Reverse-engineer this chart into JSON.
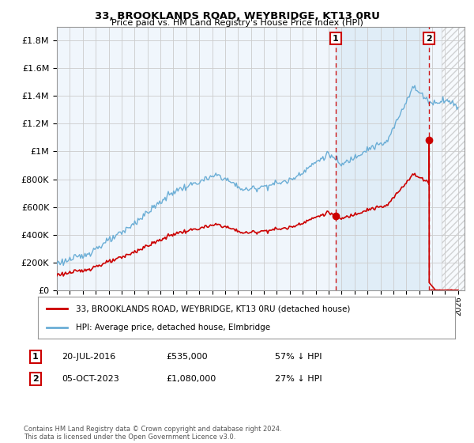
{
  "title": "33, BROOKLANDS ROAD, WEYBRIDGE, KT13 0RU",
  "subtitle": "Price paid vs. HM Land Registry's House Price Index (HPI)",
  "ylabel_ticks": [
    "£0",
    "£200K",
    "£400K",
    "£600K",
    "£800K",
    "£1M",
    "£1.2M",
    "£1.4M",
    "£1.6M",
    "£1.8M"
  ],
  "ytick_values": [
    0,
    200000,
    400000,
    600000,
    800000,
    1000000,
    1200000,
    1400000,
    1600000,
    1800000
  ],
  "ylim": [
    0,
    1900000
  ],
  "xlim_start": 1995.0,
  "xlim_end": 2026.5,
  "transaction1_date": 2016.55,
  "transaction1_price": 535000,
  "transaction1_label": "1",
  "transaction2_date": 2023.76,
  "transaction2_price": 1080000,
  "transaction2_label": "2",
  "hpi_color": "#6baed6",
  "hpi_fill_color": "#d6e8f5",
  "property_color": "#cc0000",
  "dashed_line_color": "#cc0000",
  "background_color": "#ffffff",
  "plot_bg_color": "#f0f6fc",
  "grid_color": "#cccccc",
  "legend_label_property": "33, BROOKLANDS ROAD, WEYBRIDGE, KT13 0RU (detached house)",
  "legend_label_hpi": "HPI: Average price, detached house, Elmbridge",
  "footer_text": "Contains HM Land Registry data © Crown copyright and database right 2024.\nThis data is licensed under the Open Government Licence v3.0.",
  "table_row1": [
    "1",
    "20-JUL-2016",
    "£535,000",
    "57% ↓ HPI"
  ],
  "table_row2": [
    "2",
    "05-OCT-2023",
    "£1,080,000",
    "27% ↓ HPI"
  ],
  "hatch_start": 2024.75,
  "shade_start": 2016.55,
  "shade_end": 2023.76
}
